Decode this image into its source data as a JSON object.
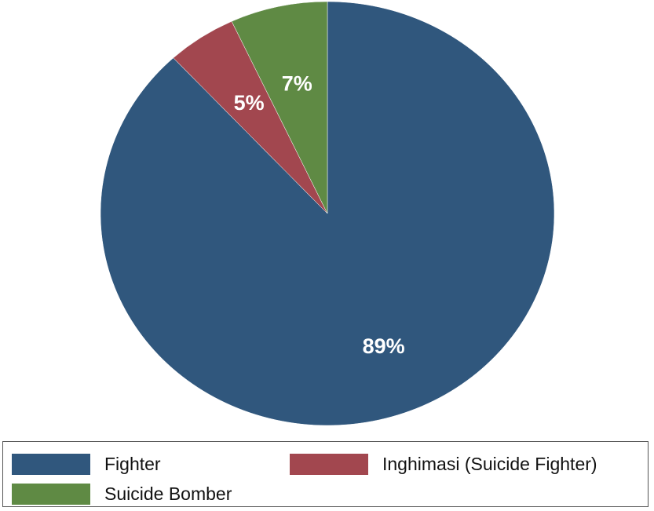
{
  "chart_data": {
    "type": "pie",
    "categories": [
      "Fighter",
      "Inghimasi (Suicide Fighter)",
      "Suicide Bomber"
    ],
    "values": [
      89,
      5,
      7
    ],
    "data_labels": [
      "89%",
      "5%",
      "7%"
    ],
    "colors": [
      "#30577d",
      "#a2474f",
      "#5f8a44"
    ],
    "title": "",
    "legend_placement": "bottom",
    "start_angle": "12 o'clock",
    "direction": "clockwise"
  },
  "legend": {
    "items": [
      {
        "label": "Fighter",
        "color": "#30577d"
      },
      {
        "label": "Inghimasi (Suicide Fighter)",
        "color": "#a2474f"
      },
      {
        "label": "Suicide Bomber",
        "color": "#5f8a44"
      }
    ]
  }
}
